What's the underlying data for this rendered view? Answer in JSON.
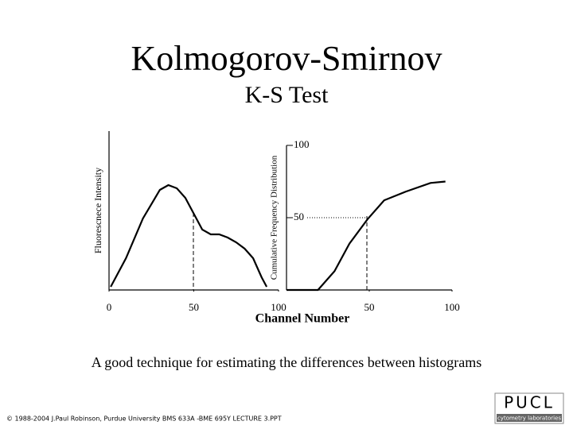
{
  "title": "Kolmogorov-Smirnov",
  "subtitle": "K-S Test",
  "x_axis_label": "Channel Number",
  "caption": "A good technique for estimating the differences  between histograms",
  "footer": "© 1988-2004 J.Paul Robinson, Purdue University  BMS 633A -BME 695Y  LECTURE 3.PPT",
  "logo": {
    "name": "PUCL",
    "tagline": "cytometry laboratories"
  },
  "chart_data": [
    {
      "type": "line",
      "y_label": "Fluorescnece Intensity",
      "color": "#000000",
      "x": [
        1,
        10,
        20,
        30,
        35,
        40,
        45,
        50,
        55,
        60,
        65,
        70,
        75,
        80,
        85,
        90,
        93
      ],
      "values": [
        2,
        20,
        45,
        63,
        66,
        64,
        58,
        48,
        38,
        35,
        35,
        33,
        30,
        26,
        20,
        8,
        2
      ],
      "xlim": [
        0,
        100
      ],
      "xticks": [
        0,
        50,
        100
      ],
      "ylim": [
        0,
        100
      ]
    },
    {
      "type": "line",
      "y_label": "Cumulative Frequency Distribution",
      "color": "#000000",
      "x": [
        0,
        19,
        29,
        38,
        49,
        59,
        72,
        87,
        96
      ],
      "values": [
        0,
        0,
        13,
        32,
        49,
        62,
        68,
        74,
        75
      ],
      "xlim": [
        0,
        100
      ],
      "xticks": [
        50,
        100
      ],
      "ylim": [
        0,
        100
      ],
      "yticks": [
        50,
        100
      ]
    }
  ]
}
